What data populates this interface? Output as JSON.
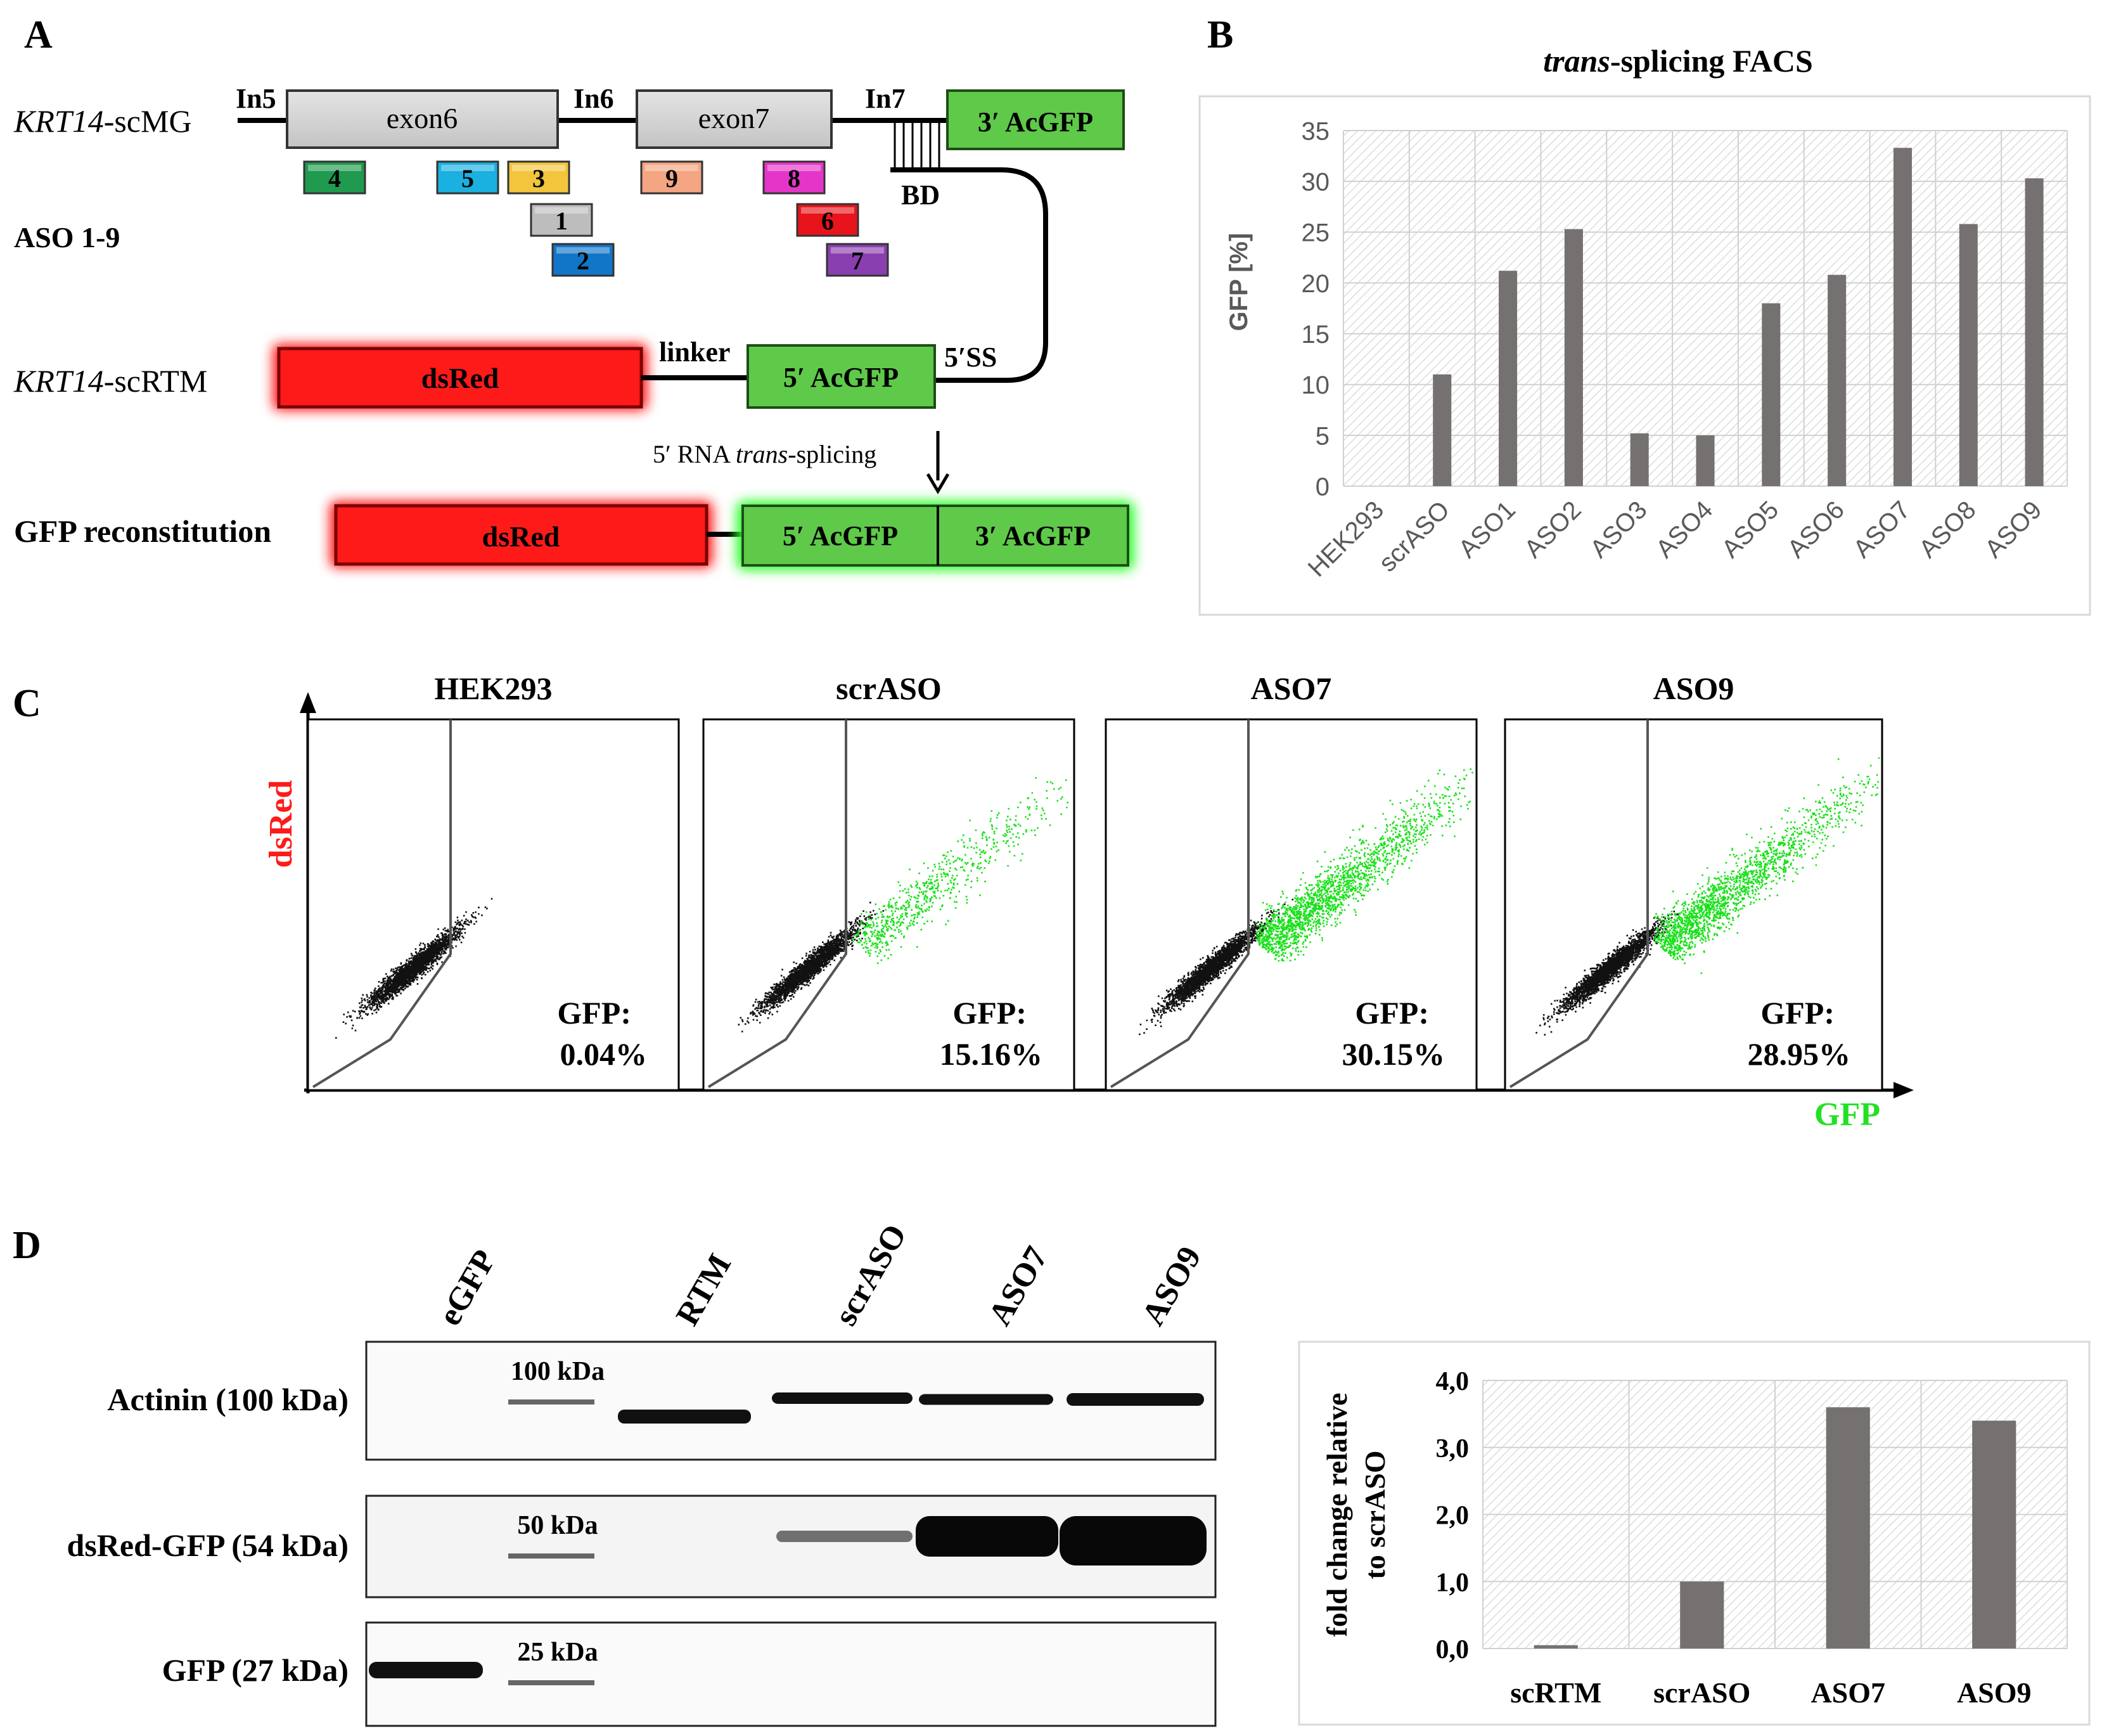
{
  "panel_a": {
    "letter": "A",
    "construct1_gene": "KRT14",
    "construct1_suffix": "-scMG",
    "in5": "In5",
    "in6": "In6",
    "in7": "In7",
    "exon6": "exon6",
    "exon7": "exon7",
    "acgfp3": "3′ AcGFP",
    "bd": "BD",
    "aso_row_label": "ASO 1-9",
    "asos": [
      {
        "n": "4",
        "color": "#1f9a4f"
      },
      {
        "n": "5",
        "color": "#1ab0e0"
      },
      {
        "n": "3",
        "color": "#f2c53d"
      },
      {
        "n": "9",
        "color": "#f4a582"
      },
      {
        "n": "8",
        "color": "#e535c8"
      },
      {
        "n": "1",
        "color": "#bdbdbd"
      },
      {
        "n": "6",
        "color": "#e8141b"
      },
      {
        "n": "2",
        "color": "#1276c8"
      },
      {
        "n": "7",
        "color": "#8a3fb0"
      }
    ],
    "construct2_gene": "KRT14",
    "construct2_suffix": "-scRTM",
    "dsred": "dsRed",
    "linker": "linker",
    "acgfp5": "5′ AcGFP",
    "ss5": "5′SS",
    "arrow_label_pre": "5′ RNA ",
    "arrow_label_ital": "trans",
    "arrow_label_post": "-splicing",
    "recon_label": "GFP reconstitution",
    "recon_dsred": "dsRed",
    "recon_acgfp5": "5′ AcGFP",
    "recon_acgfp3": "3′ AcGFP",
    "colors": {
      "red": "#ff1a1a",
      "green": "#5fc94a",
      "grey": "#d3d3d3"
    }
  },
  "panel_b": {
    "letter": "B",
    "title_ital": "trans",
    "title_rest": "-splicing FACS",
    "chart_data": {
      "type": "bar",
      "title": "trans-splicing FACS",
      "ylabel": "GFP [%]",
      "xlabel": "",
      "categories": [
        "HEK293",
        "scrASO",
        "ASO1",
        "ASO2",
        "ASO3",
        "ASO4",
        "ASO5",
        "ASO6",
        "ASO7",
        "ASO8",
        "ASO9"
      ],
      "values": [
        0,
        11,
        21.2,
        25.3,
        5.2,
        5.0,
        18.0,
        20.8,
        33.3,
        25.8,
        30.3
      ],
      "yticks": [
        "0",
        "5",
        "10",
        "15",
        "20",
        "25",
        "30",
        "35"
      ],
      "ylim": [
        0,
        35
      ],
      "bar_color": "#767171"
    }
  },
  "panel_c": {
    "letter": "C",
    "y_axis_label": "dsRed",
    "x_axis_label": "GFP",
    "y_color": "#ff1a1a",
    "x_color": "#22e022",
    "plots": [
      {
        "title": "HEK293",
        "label": "GFP:",
        "value": "0.04%",
        "green": 0
      },
      {
        "title": "scrASO",
        "label": "GFP:",
        "value": "15.16%",
        "green": 700
      },
      {
        "title": "ASO7",
        "label": "GFP:",
        "value": "30.15%",
        "green": 1900
      },
      {
        "title": "ASO9",
        "label": "GFP:",
        "value": "28.95%",
        "green": 1800
      }
    ]
  },
  "panel_d": {
    "letter": "D",
    "lanes": [
      "eGFP",
      "RTM",
      "scrASO",
      "ASO7",
      "ASO9"
    ],
    "rows": [
      {
        "label": "Actinin (100 kDa)",
        "marker": "100 kDa"
      },
      {
        "label": "dsRed-GFP (54 kDa)",
        "marker": "50 kDa"
      },
      {
        "label": "GFP (27 kDa)",
        "marker": "25 kDa"
      }
    ],
    "chart_data": {
      "type": "bar",
      "title": "",
      "ylabel": "fold change relative to scrASO",
      "ylabel_line1": "fold change relative",
      "ylabel_line2": "to scrASO",
      "xlabel": "",
      "categories": [
        "scRTM",
        "scrASO",
        "ASO7",
        "ASO9"
      ],
      "values": [
        0.05,
        1.0,
        3.6,
        3.4
      ],
      "yticks": [
        "0,0",
        "1,0",
        "2,0",
        "3,0",
        "4,0"
      ],
      "ylim": [
        0,
        4
      ],
      "bar_color": "#767171"
    }
  }
}
